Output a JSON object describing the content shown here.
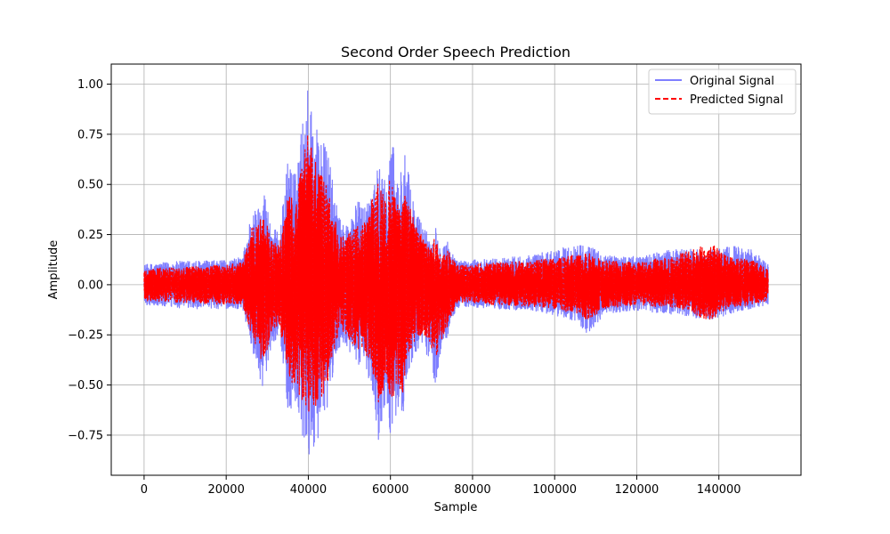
{
  "chart_data": {
    "type": "line",
    "title": "Second Order Speech Prediction",
    "xlabel": "Sample",
    "ylabel": "Amplitude",
    "xlim": [
      -8000,
      160000
    ],
    "ylim": [
      -0.95,
      1.1
    ],
    "x_ticks": [
      0,
      20000,
      40000,
      60000,
      80000,
      100000,
      120000,
      140000
    ],
    "x_tick_labels": [
      "0",
      "20000",
      "40000",
      "60000",
      "80000",
      "100000",
      "120000",
      "140000"
    ],
    "y_ticks": [
      -0.75,
      -0.5,
      -0.25,
      0.0,
      0.25,
      0.5,
      0.75,
      1.0
    ],
    "y_tick_labels": [
      "−0.75",
      "−0.50",
      "−0.25",
      "0.00",
      "0.25",
      "0.50",
      "0.75",
      "1.00"
    ],
    "grid": true,
    "legend_position": "top-right",
    "x_extent": [
      0,
      152000
    ],
    "series": [
      {
        "name": "Original Signal",
        "color": "#7f7fff",
        "style": "solid",
        "envelope_x": [
          0,
          10000,
          20000,
          24000,
          26000,
          28000,
          29000,
          31000,
          33000,
          35000,
          37000,
          39000,
          40000,
          42000,
          44000,
          45000,
          46000,
          48000,
          50000,
          52000,
          54000,
          56000,
          57000,
          59000,
          60000,
          62000,
          63000,
          64000,
          66000,
          68000,
          70000,
          71000,
          72000,
          74000,
          76000,
          78000,
          85000,
          95000,
          105000,
          108000,
          112000,
          120000,
          130000,
          138000,
          142000,
          148000,
          152000
        ],
        "envelope_upper": [
          0.1,
          0.12,
          0.12,
          0.14,
          0.35,
          0.4,
          0.5,
          0.3,
          0.25,
          0.63,
          0.55,
          0.9,
          1.0,
          0.8,
          0.7,
          0.65,
          0.5,
          0.3,
          0.32,
          0.42,
          0.4,
          0.55,
          0.6,
          0.5,
          0.8,
          0.5,
          0.7,
          0.6,
          0.38,
          0.3,
          0.22,
          0.3,
          0.2,
          0.22,
          0.12,
          0.12,
          0.13,
          0.15,
          0.2,
          0.2,
          0.15,
          0.14,
          0.18,
          0.17,
          0.2,
          0.18,
          0.1
        ],
        "envelope_lower": [
          -0.1,
          -0.12,
          -0.12,
          -0.12,
          -0.3,
          -0.45,
          -0.52,
          -0.3,
          -0.25,
          -0.62,
          -0.65,
          -0.82,
          -0.87,
          -0.78,
          -0.7,
          -0.6,
          -0.45,
          -0.28,
          -0.35,
          -0.4,
          -0.42,
          -0.55,
          -0.82,
          -0.55,
          -0.75,
          -0.6,
          -0.72,
          -0.45,
          -0.35,
          -0.3,
          -0.42,
          -0.5,
          -0.38,
          -0.25,
          -0.12,
          -0.11,
          -0.12,
          -0.13,
          -0.18,
          -0.25,
          -0.15,
          -0.13,
          -0.15,
          -0.18,
          -0.15,
          -0.12,
          -0.1
        ]
      },
      {
        "name": "Predicted Signal",
        "color": "#ff0000",
        "style": "dashed",
        "envelope_x": [
          0,
          10000,
          20000,
          24000,
          26000,
          28000,
          29000,
          31000,
          33000,
          35000,
          37000,
          39000,
          40000,
          42000,
          44000,
          45000,
          46000,
          48000,
          50000,
          52000,
          54000,
          56000,
          57000,
          59000,
          60000,
          62000,
          63000,
          64000,
          66000,
          68000,
          70000,
          71000,
          72000,
          74000,
          76000,
          78000,
          85000,
          95000,
          105000,
          108000,
          112000,
          120000,
          130000,
          138000,
          142000,
          148000,
          152000
        ],
        "envelope_upper": [
          0.08,
          0.09,
          0.1,
          0.11,
          0.28,
          0.3,
          0.38,
          0.22,
          0.2,
          0.45,
          0.42,
          0.68,
          0.76,
          0.6,
          0.55,
          0.48,
          0.38,
          0.24,
          0.26,
          0.3,
          0.32,
          0.48,
          0.52,
          0.4,
          0.57,
          0.42,
          0.5,
          0.45,
          0.3,
          0.24,
          0.18,
          0.26,
          0.16,
          0.17,
          0.1,
          0.1,
          0.11,
          0.12,
          0.15,
          0.16,
          0.12,
          0.11,
          0.15,
          0.21,
          0.14,
          0.13,
          0.08
        ],
        "envelope_lower": [
          -0.08,
          -0.09,
          -0.1,
          -0.1,
          -0.24,
          -0.35,
          -0.4,
          -0.24,
          -0.2,
          -0.48,
          -0.52,
          -0.6,
          -0.67,
          -0.6,
          -0.55,
          -0.46,
          -0.35,
          -0.22,
          -0.28,
          -0.32,
          -0.35,
          -0.5,
          -0.6,
          -0.48,
          -0.63,
          -0.5,
          -0.55,
          -0.38,
          -0.28,
          -0.25,
          -0.32,
          -0.38,
          -0.3,
          -0.2,
          -0.1,
          -0.09,
          -0.1,
          -0.11,
          -0.14,
          -0.18,
          -0.12,
          -0.1,
          -0.12,
          -0.18,
          -0.12,
          -0.1,
          -0.08
        ]
      }
    ]
  }
}
